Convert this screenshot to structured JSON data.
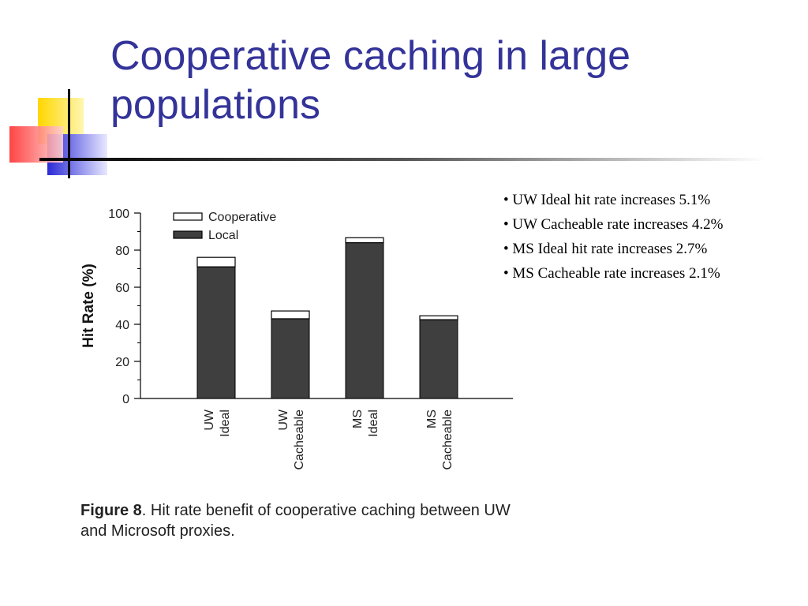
{
  "slide": {
    "title": "Cooperative caching in large populations",
    "title_color": "#333399",
    "line_color": "#000000"
  },
  "bullets": [
    "• UW Ideal hit rate increases 5.1%",
    "• UW Cacheable rate increases 4.2%",
    "• MS Ideal hit rate increases 2.7%",
    "• MS Cacheable rate increases 2.1%"
  ],
  "chart_data": {
    "type": "bar",
    "stacked": true,
    "categories": [
      {
        "line1": "UW",
        "line2": "Ideal"
      },
      {
        "line1": "UW",
        "line2": "Cacheable"
      },
      {
        "line1": "MS",
        "line2": "Ideal"
      },
      {
        "line1": "MS",
        "line2": "Cacheable"
      }
    ],
    "series": [
      {
        "name": "Local",
        "color": "#3f3f3f",
        "values": [
          71,
          43,
          84,
          42.5
        ]
      },
      {
        "name": "Cooperative",
        "color": "#ffffff",
        "values": [
          5.1,
          4.2,
          2.7,
          2.1
        ]
      }
    ],
    "ylabel": "Hit Rate (%)",
    "ylim": [
      0,
      100
    ],
    "yticks": [
      "0",
      "20",
      "40",
      "60",
      "80",
      "100"
    ],
    "grid": false,
    "legend_position": "top-left"
  },
  "caption": {
    "figure_label": "Figure 8",
    "text": ".  Hit rate benefit of cooperative caching between UW and Microsoft proxies."
  }
}
